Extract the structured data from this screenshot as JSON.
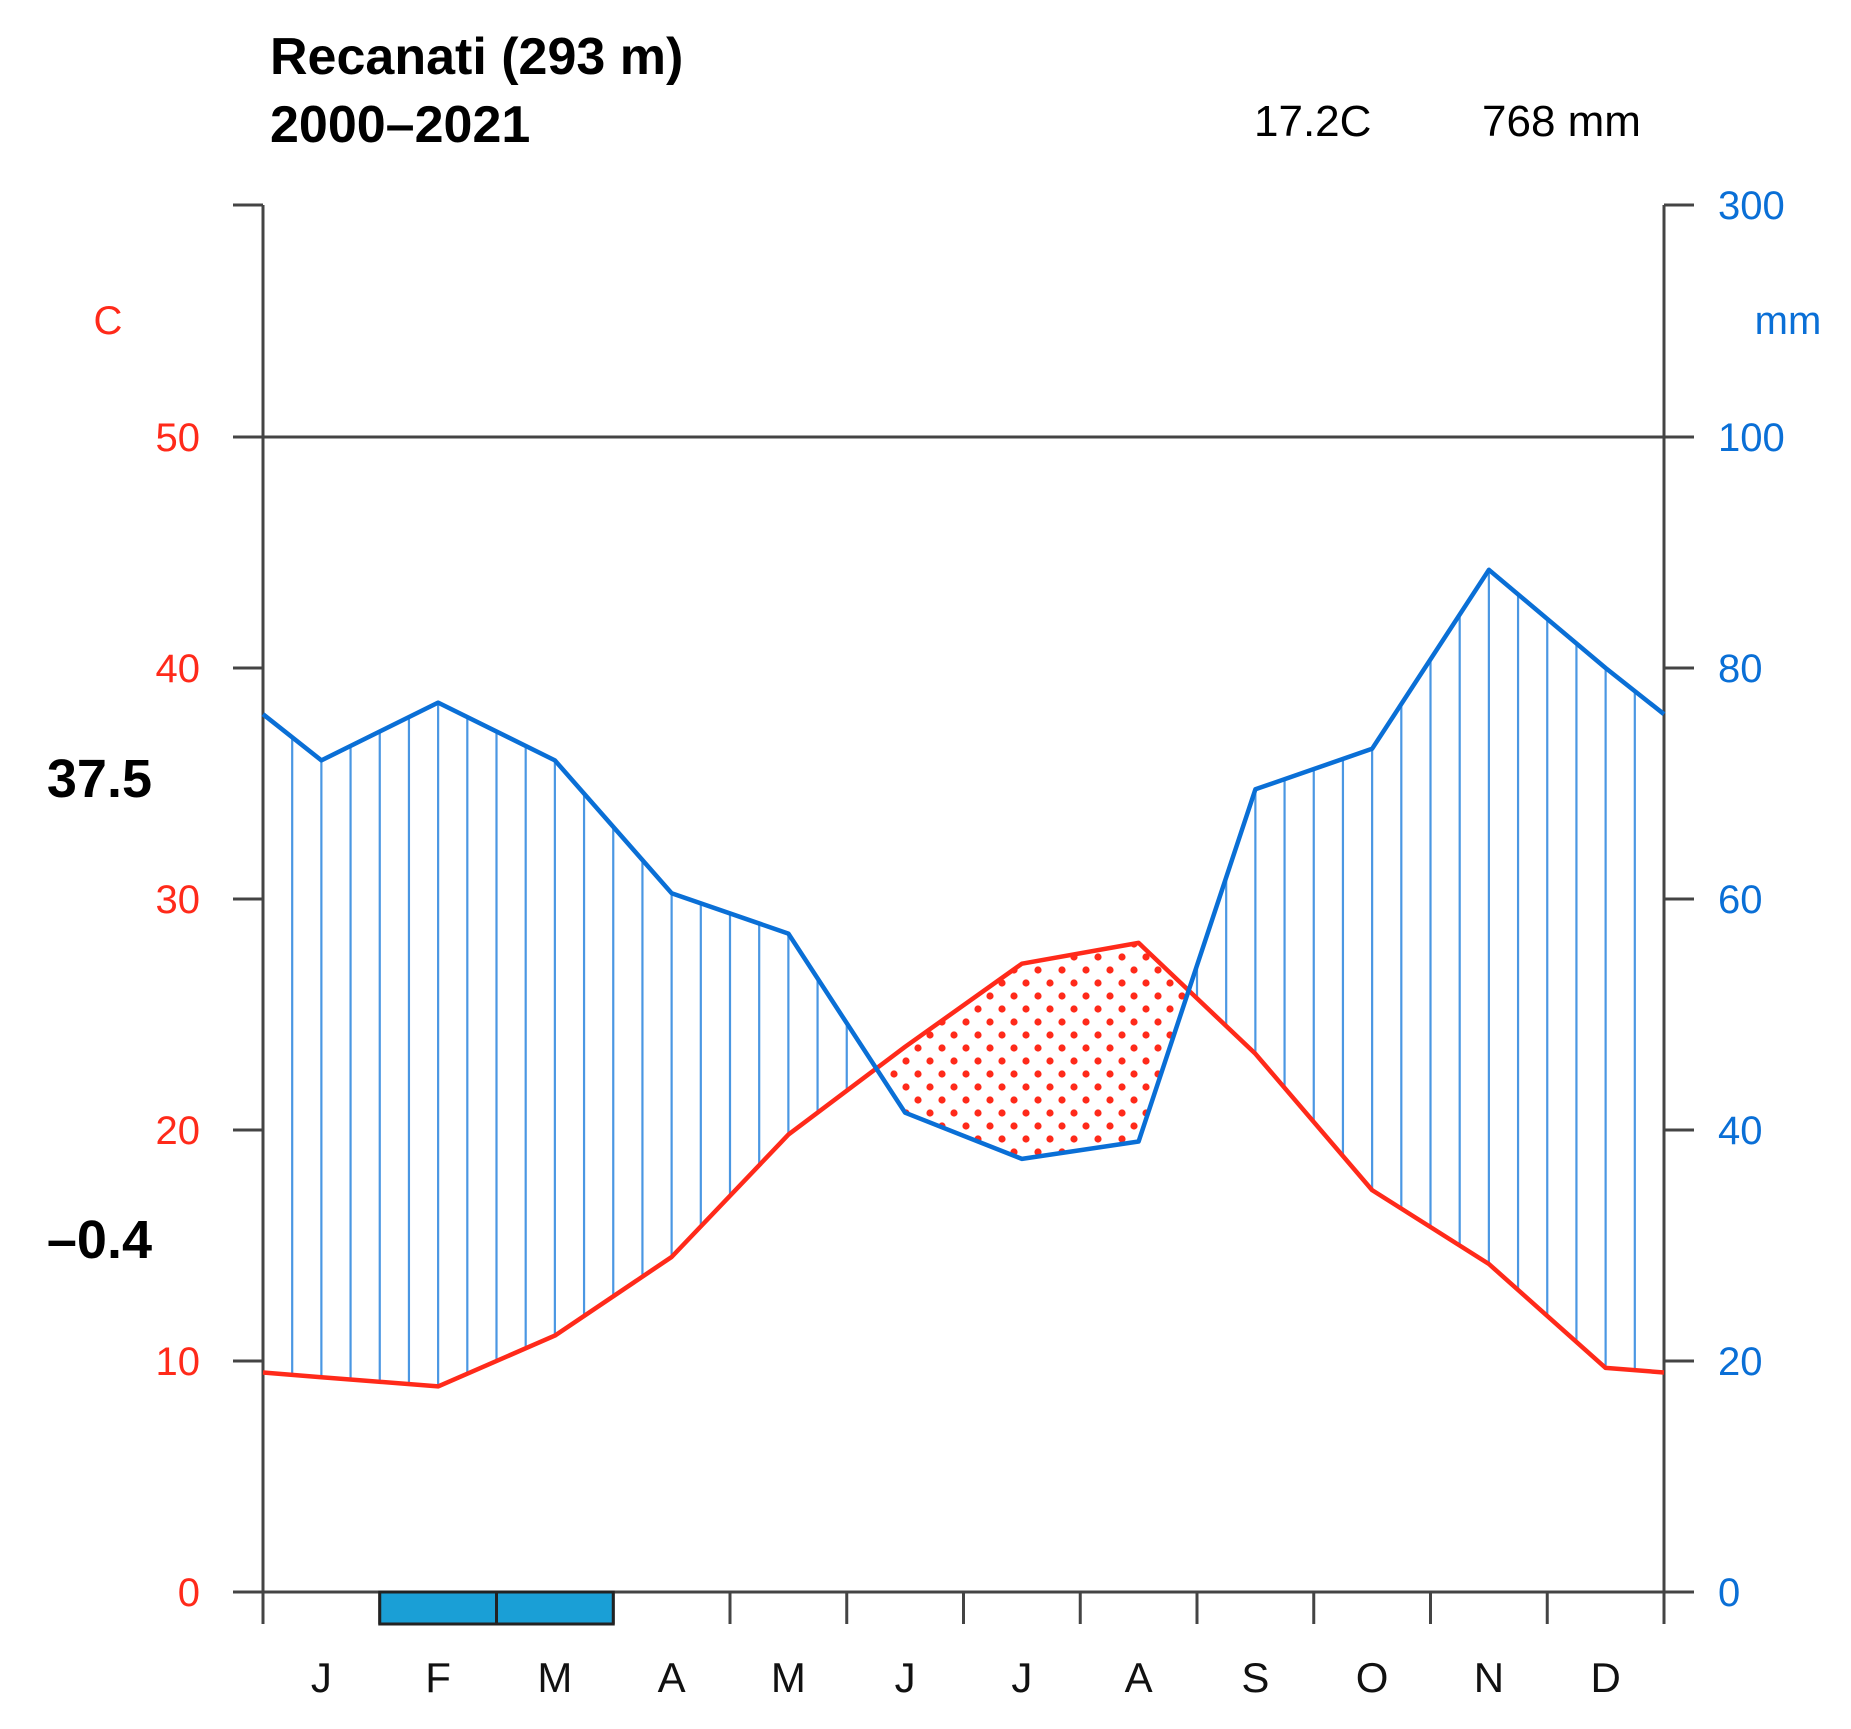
{
  "colors": {
    "temperature": "#ff2a1a",
    "precipitation": "#0a6fd6",
    "hatch": "#4a97e3",
    "frost_box": "#1a9fd6",
    "axis": "#444444"
  },
  "chart_data": {
    "type": "line",
    "title_line1": "Recanati (293 m)",
    "title_line2": "2000–2021",
    "mean_temperature": "17.2C",
    "annual_precipitation": "768 mm",
    "absolute_max_label": "37.5",
    "absolute_min_label": "–0.4",
    "left_axis_unit": "C",
    "right_axis_unit": "mm",
    "months": [
      "J",
      "F",
      "M",
      "A",
      "M",
      "J",
      "J",
      "A",
      "S",
      "O",
      "N",
      "D"
    ],
    "temperature_ylim": [
      0,
      60
    ],
    "temperature_ticks": [
      "0",
      "10",
      "20",
      "30",
      "40",
      "50"
    ],
    "temperature_tick_values": [
      0,
      10,
      20,
      30,
      40,
      50
    ],
    "precipitation_ticks": [
      "0",
      "20",
      "40",
      "60",
      "80",
      "100",
      "300"
    ],
    "precipitation_tick_values": [
      0,
      20,
      40,
      60,
      80,
      100,
      300
    ],
    "x": [
      0,
      1,
      1.5,
      2,
      3,
      4.5,
      5,
      6,
      7,
      8,
      9,
      9.5,
      10,
      11,
      12,
      12.5,
      13,
      14,
      15,
      16,
      17,
      18,
      19,
      20,
      21,
      22,
      23,
      24
    ],
    "series": [
      {
        "name": "Temperature",
        "unit": "C",
        "x": [
          0,
          1,
          3,
          5,
          7,
          9,
          11,
          13,
          15,
          17,
          19,
          21,
          23,
          24
        ],
        "values": [
          9.5,
          9.3,
          8.9,
          11.1,
          14.5,
          19.8,
          23.6,
          27.2,
          28.1,
          23.3,
          17.4,
          14.2,
          9.7,
          9.5
        ]
      },
      {
        "name": "Precipitation",
        "unit": "mm",
        "x": [
          0,
          1,
          3,
          5,
          7,
          9,
          11,
          13,
          15,
          17,
          19,
          21,
          23,
          24
        ],
        "values": [
          76,
          72,
          77,
          72,
          60.5,
          57,
          41.5,
          37.5,
          39,
          69.5,
          73,
          88.5,
          80,
          76
        ]
      }
    ],
    "frost_months": [
      "F",
      "M"
    ]
  }
}
